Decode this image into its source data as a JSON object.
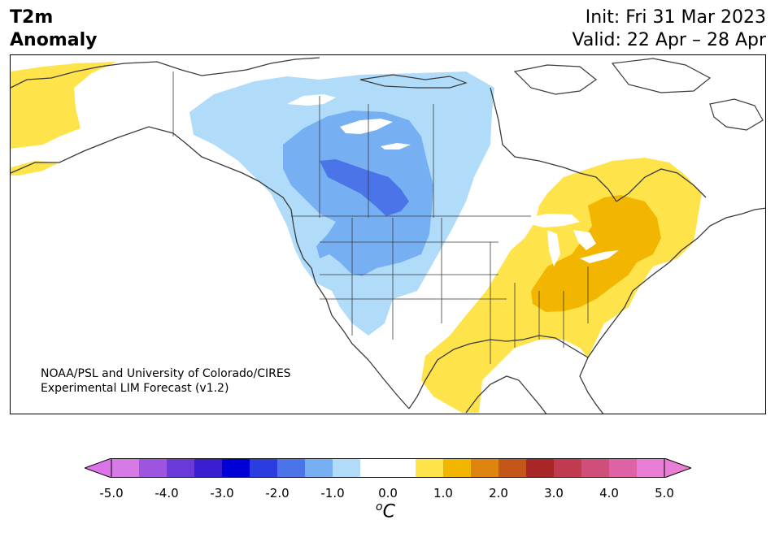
{
  "title": {
    "line1": "T2m",
    "line2": "Anomaly"
  },
  "init": "Init: Fri 31 Mar 2023",
  "valid": "Valid: 22 Apr – 28 Apr",
  "credit": {
    "line1": "NOAA/PSL and University of Colorado/CIRES",
    "line2": "Experimental LIM Forecast (v1.2)"
  },
  "colorbar": {
    "colors": [
      "#d67ae6",
      "#9d55e0",
      "#6a3ad8",
      "#3a1fd0",
      "#0000d6",
      "#2a3ee0",
      "#4a74e8",
      "#77b0f2",
      "#b0dcfa",
      "#ffffff",
      "#ffffff",
      "#ffe34a",
      "#f2b600",
      "#de8510",
      "#c4561a",
      "#a82626",
      "#c03a50",
      "#cf4f7a",
      "#dd62a6",
      "#e87ed6"
    ],
    "under_color": "#dc73e8",
    "over_color": "#e87ed6",
    "ticks": [
      "-5.0",
      "-4.0",
      "-3.0",
      "-2.0",
      "-1.0",
      "0.0",
      "1.0",
      "2.0",
      "3.0",
      "4.0",
      "5.0"
    ],
    "unit_prefix": "o",
    "unit": "C"
  },
  "map": {
    "region": "North America",
    "anomaly_areas": [
      {
        "name": "cold-light",
        "level": "-1.0",
        "color": "#b0dcfa"
      },
      {
        "name": "cold-medium",
        "level": "-1.5",
        "color": "#77b0f2"
      },
      {
        "name": "cold-deep",
        "level": "-2.0",
        "color": "#4a74e8"
      },
      {
        "name": "warm-light",
        "level": "1.0",
        "color": "#ffe34a"
      },
      {
        "name": "warm-medium",
        "level": "1.5",
        "color": "#f2b600"
      }
    ]
  }
}
